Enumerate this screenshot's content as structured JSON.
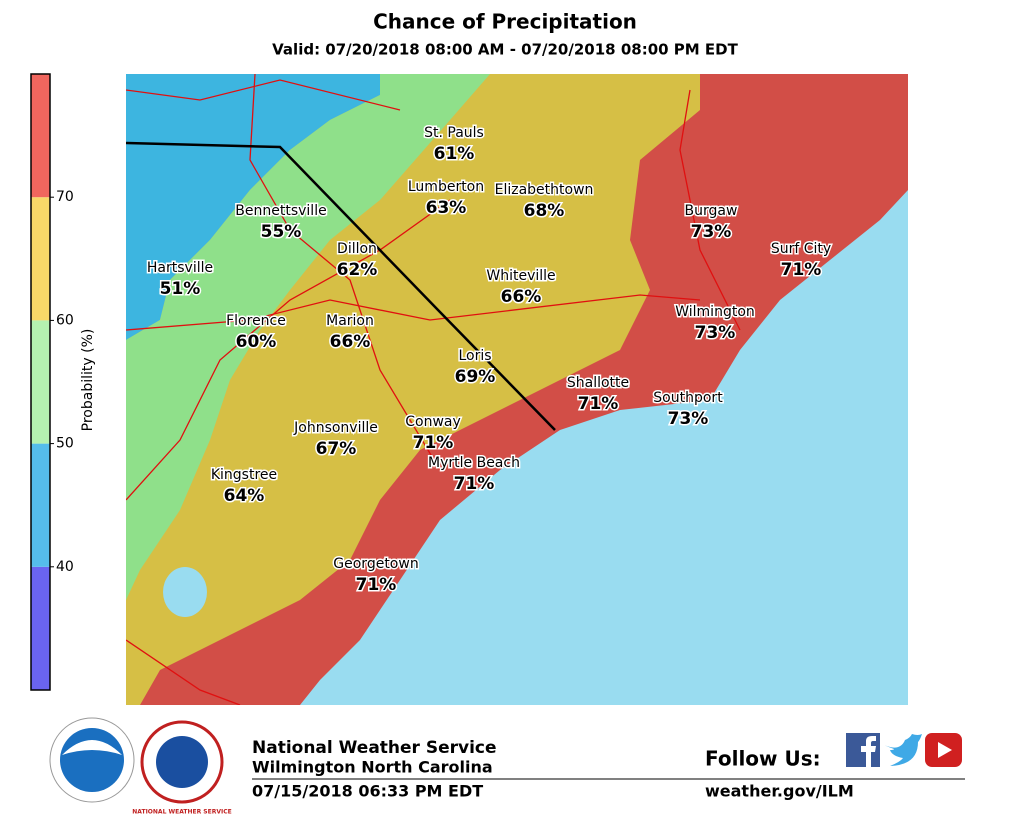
{
  "header": {
    "title": "Chance of Precipitation",
    "subtitle": "Valid: 07/20/2018 08:00 AM - 07/20/2018 08:00 PM EDT"
  },
  "colorbar": {
    "label": "Probability (%)",
    "lim": [
      30,
      80
    ],
    "ticks": [
      40,
      50,
      60,
      70
    ],
    "bands": [
      {
        "from": 30,
        "to": 40,
        "color": "#6a64f0"
      },
      {
        "from": 40,
        "to": 50,
        "color": "#55bdeb"
      },
      {
        "from": 50,
        "to": 60,
        "color": "#b5f2b0"
      },
      {
        "from": 60,
        "to": 70,
        "color": "#f8d868"
      },
      {
        "from": 70,
        "to": 80,
        "color": "#f0665e"
      }
    ]
  },
  "cities": [
    {
      "name": "St. Pauls",
      "pct": "61%"
    },
    {
      "name": "Lumberton",
      "pct": "63%"
    },
    {
      "name": "Elizabethtown",
      "pct": "68%"
    },
    {
      "name": "Bennettsville",
      "pct": "55%"
    },
    {
      "name": "Dillon",
      "pct": "62%"
    },
    {
      "name": "Burgaw",
      "pct": "73%"
    },
    {
      "name": "Surf City",
      "pct": "71%"
    },
    {
      "name": "Hartsville",
      "pct": "51%"
    },
    {
      "name": "Whiteville",
      "pct": "66%"
    },
    {
      "name": "Wilmington",
      "pct": "73%"
    },
    {
      "name": "Florence",
      "pct": "60%"
    },
    {
      "name": "Marion",
      "pct": "66%"
    },
    {
      "name": "Loris",
      "pct": "69%"
    },
    {
      "name": "Shallotte",
      "pct": "71%"
    },
    {
      "name": "Southport",
      "pct": "73%"
    },
    {
      "name": "Johnsonville",
      "pct": "67%"
    },
    {
      "name": "Conway",
      "pct": "71%"
    },
    {
      "name": "Myrtle Beach",
      "pct": "71%"
    },
    {
      "name": "Kingstree",
      "pct": "64%"
    },
    {
      "name": "Georgetown",
      "pct": "71%"
    }
  ],
  "footer": {
    "noaa_logo": "NOAA",
    "nws_logo": "NATIONAL WEATHER SERVICE",
    "agency": "National Weather Service",
    "office": "Wilmington North Carolina",
    "issued": "07/15/2018 06:33 PM EDT",
    "follow": "Follow Us:",
    "url": "weather.gov/ILM"
  }
}
